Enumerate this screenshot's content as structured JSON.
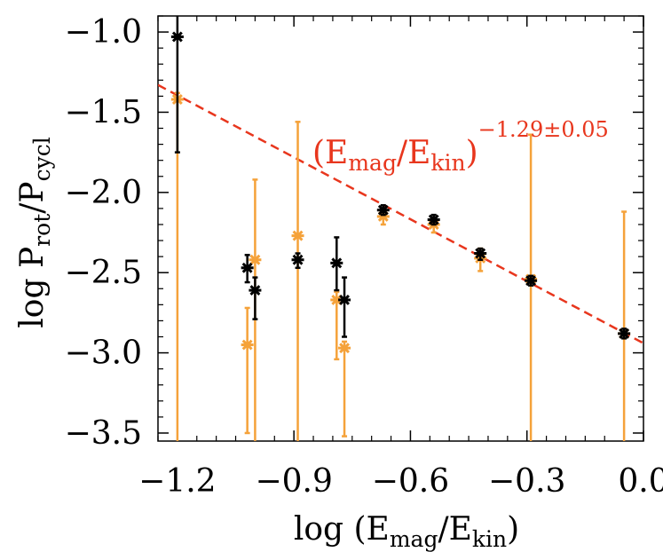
{
  "chart_data": {
    "type": "scatter",
    "xlabel_prefix": "log (E",
    "xlabel_sub1": "mag",
    "xlabel_mid": "/E",
    "xlabel_sub2": "kin",
    "xlabel_suffix": ")",
    "ylabel_prefix": "log P",
    "ylabel_sub1": "rot",
    "ylabel_mid": "/P",
    "ylabel_sub2": "cycl",
    "xlim": [
      -1.25,
      0.0
    ],
    "ylim": [
      -3.55,
      -0.9
    ],
    "xticks": [
      -1.2,
      -0.9,
      -0.6,
      -0.3,
      0.0
    ],
    "xtick_labels": [
      "−1.2",
      "−0.9",
      "−0.6",
      "−0.3",
      "0.0"
    ],
    "yticks": [
      -1.0,
      -1.5,
      -2.0,
      -2.5,
      -3.0,
      -3.5
    ],
    "ytick_labels": [
      "−1.0",
      "−1.5",
      "−2.0",
      "−2.5",
      "−3.0",
      "−3.5"
    ],
    "fit_line": {
      "color": "#e8361d",
      "points": [
        [
          -1.25,
          -1.33
        ],
        [
          0.0,
          -2.94
        ]
      ],
      "label_open": "(E",
      "label_sub1": "mag",
      "label_mid": "/E",
      "label_sub2": "kin",
      "label_close": ")",
      "label_exponent": "−1.29±0.05"
    },
    "series": [
      {
        "color": "#000000",
        "points": [
          {
            "x": -1.2,
            "y": -1.03,
            "ylo": -1.75,
            "yhi": -0.9
          },
          {
            "x": -1.02,
            "y": -2.47,
            "ylo": -2.56,
            "yhi": -2.39
          },
          {
            "x": -1.0,
            "y": -2.61,
            "ylo": -2.79,
            "yhi": -2.53
          },
          {
            "x": -0.89,
            "y": -2.42,
            "ylo": -2.47,
            "yhi": -2.38
          },
          {
            "x": -0.79,
            "y": -2.44,
            "ylo": -2.61,
            "yhi": -2.28
          },
          {
            "x": -0.77,
            "y": -2.67,
            "ylo": -2.9,
            "yhi": -2.53
          },
          {
            "x": -0.67,
            "y": -2.11,
            "ylo": -2.14,
            "yhi": -2.08
          },
          {
            "x": -0.54,
            "y": -2.17,
            "ylo": -2.2,
            "yhi": -2.14
          },
          {
            "x": -0.42,
            "y": -2.38,
            "ylo": -2.42,
            "yhi": -2.35
          },
          {
            "x": -0.29,
            "y": -2.55,
            "ylo": -2.58,
            "yhi": -2.52
          },
          {
            "x": -0.05,
            "y": -2.88,
            "ylo": -2.91,
            "yhi": -2.85
          }
        ]
      },
      {
        "color": "#f5a23a",
        "points": [
          {
            "x": -1.2,
            "y": -1.42,
            "ylo": -3.55,
            "yhi": -1.38
          },
          {
            "x": -1.02,
            "y": -2.95,
            "ylo": -3.5,
            "yhi": -2.72
          },
          {
            "x": -1.0,
            "y": -2.42,
            "ylo": -3.55,
            "yhi": -1.92
          },
          {
            "x": -0.89,
            "y": -2.27,
            "ylo": -3.55,
            "yhi": -1.56
          },
          {
            "x": -0.79,
            "y": -2.67,
            "ylo": -3.04,
            "yhi": -2.62
          },
          {
            "x": -0.77,
            "y": -2.97,
            "ylo": -3.52,
            "yhi": -2.93
          },
          {
            "x": -0.67,
            "y": -2.15,
            "ylo": -2.2,
            "yhi": -2.11
          },
          {
            "x": -0.54,
            "y": -2.2,
            "ylo": -2.25,
            "yhi": -2.16
          },
          {
            "x": -0.42,
            "y": -2.41,
            "ylo": -2.49,
            "yhi": -2.35
          },
          {
            "x": -0.29,
            "y": -2.54,
            "ylo": -3.55,
            "yhi": -1.64
          },
          {
            "x": -0.05,
            "y": -2.88,
            "ylo": -3.55,
            "yhi": -2.12
          }
        ]
      }
    ]
  }
}
